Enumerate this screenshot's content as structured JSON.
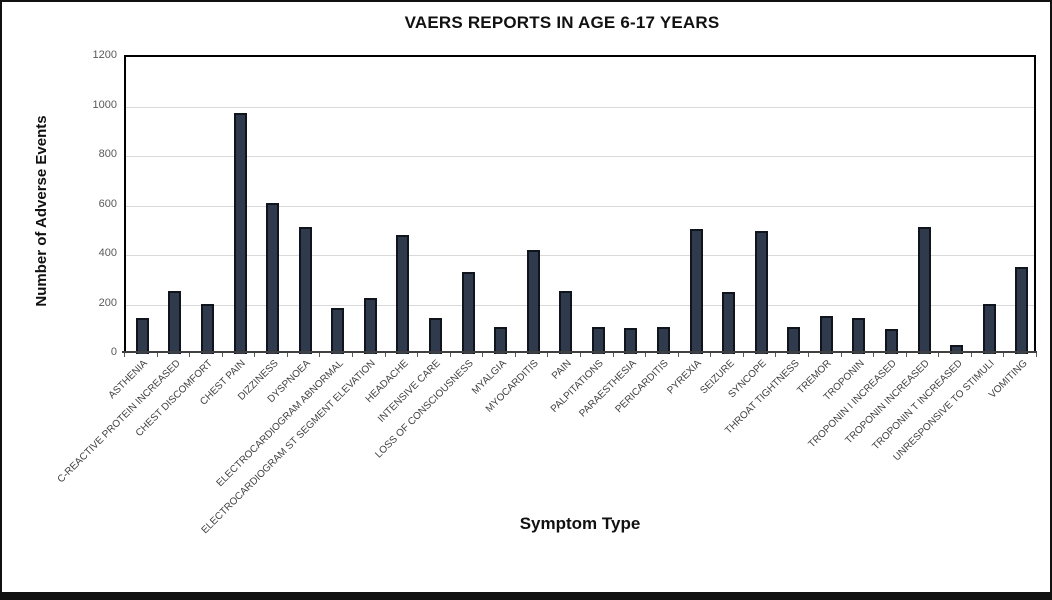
{
  "frame": {
    "background": "#ffffff",
    "border_color": "#111111"
  },
  "chart_data": {
    "type": "bar",
    "title": "VAERS REPORTS IN AGE 6-17 YEARS",
    "xlabel": "Symptom Type",
    "ylabel": "Number of  Adverse Events",
    "ylim": [
      0,
      1200
    ],
    "yticks": [
      0,
      200,
      400,
      600,
      800,
      1000,
      1200
    ],
    "grid": "horizontal",
    "legend": "none",
    "bar_fill": "#2f3b4d",
    "bar_border": "#10151d",
    "gridline_color": "#d9d9d9",
    "tick_text_color": "#595959",
    "category_text_color": "#404040",
    "categories": [
      "ASTHENIA",
      "C-REACTIVE PROTEIN INCREASED",
      "CHEST DISCOMFORT",
      "CHEST PAIN",
      "DIZZINESS",
      "DYSPNOEA",
      "ELECTROCARDIOGRAM ABNORMAL",
      "ELECTROCARDIOGRAM ST SEGMENT ELEVATION",
      "HEADACHE",
      "INTENSIVE CARE",
      "LOSS OF CONSCIOUSNESS",
      "MYALGIA",
      "MYOCARDITIS",
      "PAIN",
      "PALPITATIONS",
      "PARAESTHESIA",
      "PERICARDITIS",
      "PYREXIA",
      "SEIZURE",
      "SYNCOPE",
      "THROAT TIGHTNESS",
      "TREMOR",
      "TROPONIN",
      "TROPONIN I INCREASED",
      "TROPONIN INCREASED",
      "TROPONIN T INCREASED",
      "UNRESPONSIVE TO STIMULI",
      "VOMITING"
    ],
    "values": [
      145,
      255,
      200,
      975,
      610,
      515,
      185,
      225,
      480,
      145,
      330,
      110,
      420,
      255,
      110,
      105,
      110,
      505,
      250,
      495,
      110,
      155,
      145,
      100,
      515,
      35,
      200,
      350
    ]
  }
}
